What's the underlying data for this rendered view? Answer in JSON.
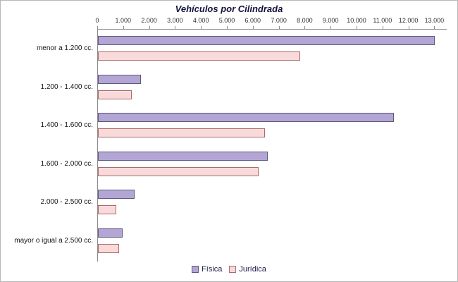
{
  "chart_data": {
    "type": "bar",
    "orientation": "horizontal",
    "title": "Vehículos por Cilindrada",
    "categories": [
      "menor a 1.200 cc.",
      "1.200 - 1.400 cc.",
      "1.400 - 1.600 cc.",
      "1.600 - 2.000 cc.",
      "2.000 - 2.500 cc.",
      "mayor o igual a 2.500 cc."
    ],
    "series": [
      {
        "name": "Física",
        "color": "#b3a6d4",
        "border_color": "#5a5a80",
        "values": [
          13000,
          1650,
          11400,
          6550,
          1400,
          950
        ]
      },
      {
        "name": "Jurídica",
        "color": "#f9dada",
        "border_color": "#aa6a6a",
        "values": [
          7800,
          1300,
          6450,
          6200,
          700,
          820
        ]
      }
    ],
    "x_axis": {
      "min": 0,
      "max": 13480,
      "tick_interval": 1000,
      "tick_labels": [
        "0",
        "1.000",
        "2.000",
        "3.000",
        "4.000",
        "5.000",
        "6.000",
        "7.000",
        "8.000",
        "9.000",
        "10.000",
        "11.000",
        "12.000",
        "13.000"
      ]
    },
    "legend": {
      "position": "bottom",
      "entries": [
        "Física",
        "Jurídica"
      ]
    },
    "grid": false,
    "ylim_note": "values in vehicles, Spanish thousand-dot formatting"
  }
}
